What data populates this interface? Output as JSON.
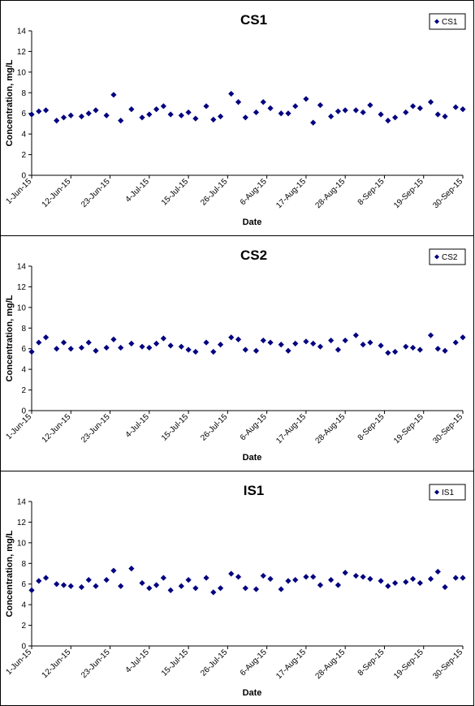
{
  "colors": {
    "marker": "#000080",
    "axis": "#000000",
    "background": "#ffffff"
  },
  "chart_data": [
    {
      "type": "scatter",
      "title": "CS1",
      "xlabel": "Date",
      "ylabel": "Concentration, mg/L",
      "ylim": [
        0,
        14
      ],
      "yticks": [
        "0",
        "2",
        "4",
        "6",
        "8",
        "10",
        "12",
        "14"
      ],
      "xlim": [
        "2015-06-01",
        "2015-09-30"
      ],
      "xticks": [
        "1-Jun-15",
        "12-Jun-15",
        "23-Jun-15",
        "4-Jul-15",
        "15-Jul-15",
        "26-Jul-15",
        "6-Aug-15",
        "17-Aug-15",
        "28-Aug-15",
        "8-Sep-15",
        "19-Sep-15",
        "30-Sep-15"
      ],
      "grid": false,
      "legend": "top-right",
      "series": [
        {
          "name": "CS1",
          "x": [
            "2015-06-01",
            "2015-06-03",
            "2015-06-05",
            "2015-06-08",
            "2015-06-10",
            "2015-06-12",
            "2015-06-15",
            "2015-06-17",
            "2015-06-19",
            "2015-06-22",
            "2015-06-24",
            "2015-06-26",
            "2015-06-29",
            "2015-07-02",
            "2015-07-04",
            "2015-07-06",
            "2015-07-08",
            "2015-07-10",
            "2015-07-13",
            "2015-07-15",
            "2015-07-17",
            "2015-07-20",
            "2015-07-22",
            "2015-07-24",
            "2015-07-27",
            "2015-07-29",
            "2015-07-31",
            "2015-08-03",
            "2015-08-05",
            "2015-08-07",
            "2015-08-10",
            "2015-08-12",
            "2015-08-14",
            "2015-08-17",
            "2015-08-19",
            "2015-08-21",
            "2015-08-24",
            "2015-08-26",
            "2015-08-28",
            "2015-08-31",
            "2015-09-02",
            "2015-09-04",
            "2015-09-07",
            "2015-09-09",
            "2015-09-11",
            "2015-09-14",
            "2015-09-16",
            "2015-09-18",
            "2015-09-21",
            "2015-09-23",
            "2015-09-25",
            "2015-09-28",
            "2015-09-30"
          ],
          "y": [
            5.9,
            6.2,
            6.3,
            5.3,
            5.6,
            5.8,
            5.7,
            6.0,
            6.3,
            5.8,
            7.8,
            5.3,
            6.4,
            5.6,
            5.9,
            6.4,
            6.7,
            5.9,
            5.8,
            6.1,
            5.5,
            6.7,
            5.4,
            5.7,
            7.9,
            7.1,
            5.6,
            6.1,
            7.1,
            6.5,
            6.0,
            6.0,
            6.7,
            7.4,
            5.1,
            6.8,
            5.7,
            6.2,
            6.3,
            6.3,
            6.1,
            6.8,
            5.9,
            5.3,
            5.6,
            6.1,
            6.7,
            6.5,
            7.1,
            5.9,
            5.7,
            6.6,
            6.4
          ]
        }
      ]
    },
    {
      "type": "scatter",
      "title": "CS2",
      "xlabel": "Date",
      "ylabel": "Concentration, mg/L",
      "ylim": [
        0,
        14
      ],
      "yticks": [
        "0",
        "2",
        "4",
        "6",
        "8",
        "10",
        "12",
        "14"
      ],
      "xlim": [
        "2015-06-01",
        "2015-09-30"
      ],
      "xticks": [
        "1-Jun-15",
        "12-Jun-15",
        "23-Jun-15",
        "4-Jul-15",
        "15-Jul-15",
        "26-Jul-15",
        "6-Aug-15",
        "17-Aug-15",
        "28-Aug-15",
        "8-Sep-15",
        "19-Sep-15",
        "30-Sep-15"
      ],
      "grid": false,
      "legend": "top-right",
      "series": [
        {
          "name": "CS2",
          "x": [
            "2015-06-01",
            "2015-06-03",
            "2015-06-05",
            "2015-06-08",
            "2015-06-10",
            "2015-06-12",
            "2015-06-15",
            "2015-06-17",
            "2015-06-19",
            "2015-06-22",
            "2015-06-24",
            "2015-06-26",
            "2015-06-29",
            "2015-07-02",
            "2015-07-04",
            "2015-07-06",
            "2015-07-08",
            "2015-07-10",
            "2015-07-13",
            "2015-07-15",
            "2015-07-17",
            "2015-07-20",
            "2015-07-22",
            "2015-07-24",
            "2015-07-27",
            "2015-07-29",
            "2015-07-31",
            "2015-08-03",
            "2015-08-05",
            "2015-08-07",
            "2015-08-10",
            "2015-08-12",
            "2015-08-14",
            "2015-08-17",
            "2015-08-19",
            "2015-08-21",
            "2015-08-24",
            "2015-08-26",
            "2015-08-28",
            "2015-08-31",
            "2015-09-02",
            "2015-09-04",
            "2015-09-07",
            "2015-09-09",
            "2015-09-11",
            "2015-09-14",
            "2015-09-16",
            "2015-09-18",
            "2015-09-21",
            "2015-09-23",
            "2015-09-25",
            "2015-09-28",
            "2015-09-30"
          ],
          "y": [
            5.7,
            6.6,
            7.1,
            6.0,
            6.6,
            6.0,
            6.1,
            6.6,
            5.8,
            6.1,
            6.9,
            6.1,
            6.5,
            6.2,
            6.1,
            6.5,
            7.0,
            6.3,
            6.2,
            5.9,
            5.7,
            6.6,
            5.7,
            6.4,
            7.1,
            6.9,
            5.9,
            5.8,
            6.8,
            6.6,
            6.4,
            5.8,
            6.5,
            6.7,
            6.5,
            6.2,
            6.8,
            5.9,
            6.8,
            7.3,
            6.4,
            6.6,
            6.3,
            5.6,
            5.7,
            6.2,
            6.1,
            5.9,
            7.3,
            6.0,
            5.8,
            6.6,
            7.1
          ]
        }
      ]
    },
    {
      "type": "scatter",
      "title": "IS1",
      "xlabel": "Date",
      "ylabel": "Concentration, mg/L",
      "ylim": [
        0,
        14
      ],
      "yticks": [
        "0",
        "2",
        "4",
        "6",
        "8",
        "10",
        "12",
        "14"
      ],
      "xlim": [
        "2015-06-01",
        "2015-09-30"
      ],
      "xticks": [
        "1-Jun-15",
        "12-Jun-15",
        "23-Jun-15",
        "4-Jul-15",
        "15-Jul-15",
        "26-Jul-15",
        "6-Aug-15",
        "17-Aug-15",
        "28-Aug-15",
        "8-Sep-15",
        "19-Sep-15",
        "30-Sep-15"
      ],
      "grid": false,
      "legend": "top-right",
      "series": [
        {
          "name": "IS1",
          "x": [
            "2015-06-01",
            "2015-06-03",
            "2015-06-05",
            "2015-06-08",
            "2015-06-10",
            "2015-06-12",
            "2015-06-15",
            "2015-06-17",
            "2015-06-19",
            "2015-06-22",
            "2015-06-24",
            "2015-06-26",
            "2015-06-29",
            "2015-07-02",
            "2015-07-04",
            "2015-07-06",
            "2015-07-08",
            "2015-07-10",
            "2015-07-13",
            "2015-07-15",
            "2015-07-17",
            "2015-07-20",
            "2015-07-22",
            "2015-07-24",
            "2015-07-27",
            "2015-07-29",
            "2015-07-31",
            "2015-08-03",
            "2015-08-05",
            "2015-08-07",
            "2015-08-10",
            "2015-08-12",
            "2015-08-14",
            "2015-08-17",
            "2015-08-19",
            "2015-08-21",
            "2015-08-24",
            "2015-08-26",
            "2015-08-28",
            "2015-08-31",
            "2015-09-02",
            "2015-09-04",
            "2015-09-07",
            "2015-09-09",
            "2015-09-11",
            "2015-09-14",
            "2015-09-16",
            "2015-09-18",
            "2015-09-21",
            "2015-09-23",
            "2015-09-25",
            "2015-09-28",
            "2015-09-30"
          ],
          "y": [
            5.4,
            6.3,
            6.6,
            6.0,
            5.9,
            5.8,
            5.7,
            6.4,
            5.8,
            6.4,
            7.3,
            5.8,
            7.5,
            6.1,
            5.6,
            5.9,
            6.6,
            5.4,
            5.8,
            6.4,
            5.6,
            6.6,
            5.2,
            5.6,
            7.0,
            6.7,
            5.6,
            5.5,
            6.8,
            6.5,
            5.5,
            6.3,
            6.4,
            6.7,
            6.7,
            5.9,
            6.4,
            5.9,
            7.1,
            6.8,
            6.7,
            6.5,
            6.3,
            5.8,
            6.1,
            6.2,
            6.5,
            6.1,
            6.5,
            7.2,
            5.7,
            6.6,
            6.6
          ]
        }
      ]
    }
  ]
}
